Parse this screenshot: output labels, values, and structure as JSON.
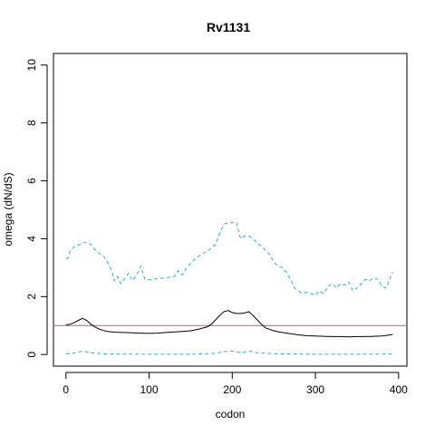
{
  "chart_data": {
    "type": "line",
    "title": "Rv1131",
    "xlabel": "codon",
    "ylabel": "omega (dN/dS)",
    "xlim": [
      -15,
      410
    ],
    "ylim": [
      -0.4,
      10.4
    ],
    "x_ticks": [
      0,
      100,
      200,
      300,
      400
    ],
    "y_ticks": [
      0,
      2,
      4,
      6,
      8,
      10
    ],
    "grid": false,
    "legend": "none",
    "reference_line": {
      "y": 1,
      "color": "#c0509a"
    },
    "series": [
      {
        "style": "solid",
        "color": "#000000",
        "points": [
          [
            0,
            1.02
          ],
          [
            5,
            1.05
          ],
          [
            10,
            1.1
          ],
          [
            15,
            1.18
          ],
          [
            20,
            1.25
          ],
          [
            25,
            1.18
          ],
          [
            30,
            1.05
          ],
          [
            35,
            0.95
          ],
          [
            40,
            0.88
          ],
          [
            45,
            0.83
          ],
          [
            50,
            0.8
          ],
          [
            60,
            0.77
          ],
          [
            70,
            0.76
          ],
          [
            80,
            0.75
          ],
          [
            90,
            0.74
          ],
          [
            100,
            0.73
          ],
          [
            110,
            0.74
          ],
          [
            120,
            0.76
          ],
          [
            130,
            0.78
          ],
          [
            140,
            0.8
          ],
          [
            150,
            0.82
          ],
          [
            160,
            0.88
          ],
          [
            170,
            0.96
          ],
          [
            175,
            1.05
          ],
          [
            180,
            1.2
          ],
          [
            185,
            1.35
          ],
          [
            190,
            1.48
          ],
          [
            195,
            1.52
          ],
          [
            200,
            1.45
          ],
          [
            205,
            1.42
          ],
          [
            210,
            1.42
          ],
          [
            215,
            1.44
          ],
          [
            220,
            1.48
          ],
          [
            225,
            1.35
          ],
          [
            230,
            1.2
          ],
          [
            235,
            1.05
          ],
          [
            240,
            0.92
          ],
          [
            250,
            0.82
          ],
          [
            260,
            0.76
          ],
          [
            270,
            0.72
          ],
          [
            280,
            0.68
          ],
          [
            290,
            0.65
          ],
          [
            300,
            0.64
          ],
          [
            310,
            0.63
          ],
          [
            320,
            0.62
          ],
          [
            330,
            0.62
          ],
          [
            340,
            0.61
          ],
          [
            350,
            0.62
          ],
          [
            360,
            0.62
          ],
          [
            370,
            0.63
          ],
          [
            380,
            0.64
          ],
          [
            390,
            0.68
          ],
          [
            393,
            0.7
          ]
        ]
      },
      {
        "style": "dashed",
        "color": "#3ba4db",
        "points": [
          [
            0,
            3.3
          ],
          [
            3,
            3.35
          ],
          [
            5,
            3.6
          ],
          [
            10,
            3.72
          ],
          [
            15,
            3.78
          ],
          [
            20,
            3.85
          ],
          [
            25,
            3.88
          ],
          [
            30,
            3.8
          ],
          [
            35,
            3.62
          ],
          [
            40,
            3.5
          ],
          [
            45,
            3.4
          ],
          [
            50,
            3.2
          ],
          [
            55,
            2.9
          ],
          [
            58,
            2.55
          ],
          [
            62,
            2.7
          ],
          [
            66,
            2.45
          ],
          [
            70,
            2.6
          ],
          [
            75,
            2.8
          ],
          [
            80,
            2.55
          ],
          [
            85,
            2.75
          ],
          [
            90,
            3.05
          ],
          [
            95,
            2.6
          ],
          [
            100,
            2.58
          ],
          [
            110,
            2.62
          ],
          [
            120,
            2.65
          ],
          [
            130,
            2.7
          ],
          [
            135,
            2.9
          ],
          [
            140,
            2.75
          ],
          [
            145,
            3.0
          ],
          [
            150,
            3.15
          ],
          [
            155,
            3.3
          ],
          [
            160,
            3.4
          ],
          [
            165,
            3.5
          ],
          [
            170,
            3.55
          ],
          [
            175,
            3.7
          ],
          [
            180,
            3.8
          ],
          [
            185,
            4.2
          ],
          [
            190,
            4.5
          ],
          [
            195,
            4.56
          ],
          [
            200,
            4.56
          ],
          [
            205,
            4.56
          ],
          [
            210,
            4.0
          ],
          [
            215,
            4.1
          ],
          [
            220,
            4.1
          ],
          [
            225,
            4.0
          ],
          [
            230,
            3.85
          ],
          [
            235,
            3.75
          ],
          [
            240,
            3.6
          ],
          [
            245,
            3.45
          ],
          [
            250,
            3.2
          ],
          [
            255,
            3.05
          ],
          [
            260,
            3.0
          ],
          [
            265,
            2.85
          ],
          [
            270,
            2.6
          ],
          [
            275,
            2.3
          ],
          [
            280,
            2.18
          ],
          [
            285,
            2.12
          ],
          [
            290,
            2.15
          ],
          [
            295,
            2.1
          ],
          [
            300,
            2.05
          ],
          [
            305,
            2.2
          ],
          [
            310,
            2.1
          ],
          [
            315,
            2.35
          ],
          [
            320,
            2.45
          ],
          [
            325,
            2.3
          ],
          [
            330,
            2.45
          ],
          [
            335,
            2.4
          ],
          [
            340,
            2.5
          ],
          [
            345,
            2.2
          ],
          [
            350,
            2.3
          ],
          [
            355,
            2.45
          ],
          [
            360,
            2.6
          ],
          [
            365,
            2.55
          ],
          [
            370,
            2.65
          ],
          [
            375,
            2.6
          ],
          [
            380,
            2.35
          ],
          [
            385,
            2.3
          ],
          [
            390,
            2.65
          ],
          [
            393,
            2.85
          ]
        ]
      },
      {
        "style": "dashed",
        "color": "#3ba4db",
        "points": [
          [
            0,
            0.02
          ],
          [
            10,
            0.05
          ],
          [
            20,
            0.12
          ],
          [
            30,
            0.06
          ],
          [
            50,
            0.02
          ],
          [
            100,
            0.01
          ],
          [
            150,
            0.01
          ],
          [
            180,
            0.04
          ],
          [
            190,
            0.1
          ],
          [
            200,
            0.12
          ],
          [
            210,
            0.06
          ],
          [
            220,
            0.12
          ],
          [
            230,
            0.06
          ],
          [
            250,
            0.03
          ],
          [
            300,
            0.01
          ],
          [
            350,
            0.01
          ],
          [
            393,
            0.02
          ]
        ]
      }
    ]
  }
}
